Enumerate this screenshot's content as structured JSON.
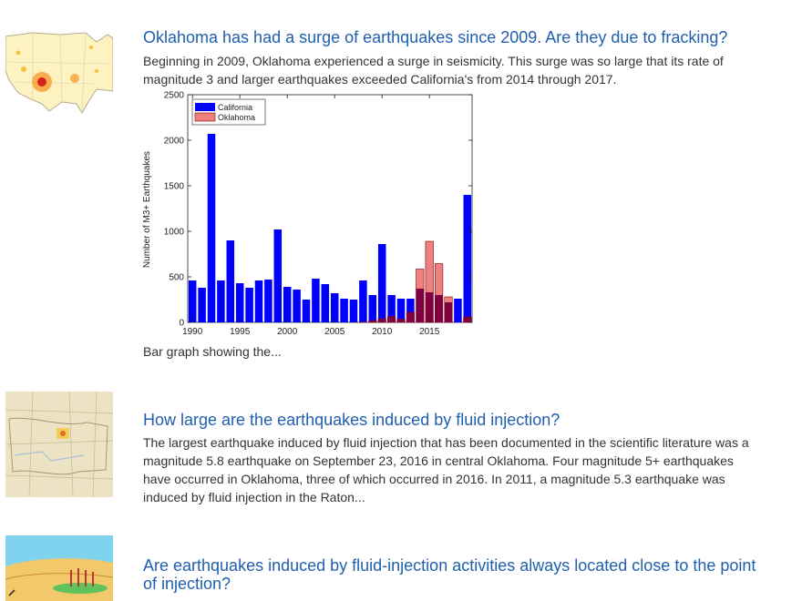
{
  "results": [
    {
      "title": "Oklahoma has had a surge of earthquakes since 2009. Are they due to fracking?",
      "snippet_line1": "Beginning in 2009, Oklahoma experienced a surge in seismicity. This surge was so large that its rate of",
      "snippet_line2": "magnitude 3 and larger earthquakes exceeded California's from 2014 through 2017.",
      "thumbnail_icon": "us-seismicity-map-icon",
      "caption": "Bar graph showing the..."
    },
    {
      "title": "How large are the earthquakes induced by fluid injection?",
      "snippet_lines": [
        "The largest earthquake induced by fluid injection that has been documented in the scientific literature was a",
        "magnitude 5.8 earthquake on September 23, 2016 in central Oklahoma. Four magnitude 5+ earthquakes",
        "have occurred in Oklahoma, three of which occurred in 2016. In 2011, a magnitude 5.3 earthquake was",
        "induced by fluid injection in the Raton..."
      ],
      "thumbnail_icon": "oklahoma-map-icon"
    },
    {
      "title_line1": "Are earthquakes induced by fluid-injection activities always located close to the point",
      "title_line2": "of injection?",
      "thumbnail_icon": "fluid-injection-diagram-icon"
    }
  ],
  "chart_data": {
    "type": "bar",
    "title": "",
    "xlabel": "",
    "ylabel": "Number of M3+ Earthquakes",
    "ylim": [
      0,
      2500
    ],
    "yticks": [
      0,
      500,
      1000,
      1500,
      2000,
      2500
    ],
    "xticks": [
      1990,
      1995,
      2000,
      2005,
      2010,
      2015
    ],
    "xlim": [
      1989.5,
      2019.5
    ],
    "grid": false,
    "legend_placement": "top-left",
    "x": [
      1990,
      1991,
      1992,
      1993,
      1994,
      1995,
      1996,
      1997,
      1998,
      1999,
      2000,
      2001,
      2002,
      2003,
      2004,
      2005,
      2006,
      2007,
      2008,
      2009,
      2010,
      2011,
      2012,
      2013,
      2014,
      2015,
      2016,
      2017,
      2018,
      2019
    ],
    "series": [
      {
        "name": "California",
        "color": "#0000ff",
        "values": [
          460,
          380,
          2070,
          460,
          900,
          430,
          380,
          460,
          470,
          1020,
          390,
          360,
          250,
          480,
          420,
          320,
          260,
          250,
          460,
          300,
          860,
          300,
          260,
          260,
          370,
          330,
          300,
          220,
          260,
          1400
        ]
      },
      {
        "name": "Oklahoma",
        "color": "#f08080",
        "values": [
          0,
          0,
          0,
          0,
          0,
          0,
          0,
          0,
          0,
          0,
          0,
          0,
          0,
          0,
          0,
          0,
          0,
          0,
          2,
          20,
          40,
          65,
          35,
          110,
          585,
          890,
          645,
          280,
          0,
          60
        ]
      }
    ],
    "overlap_color": "#800040"
  }
}
